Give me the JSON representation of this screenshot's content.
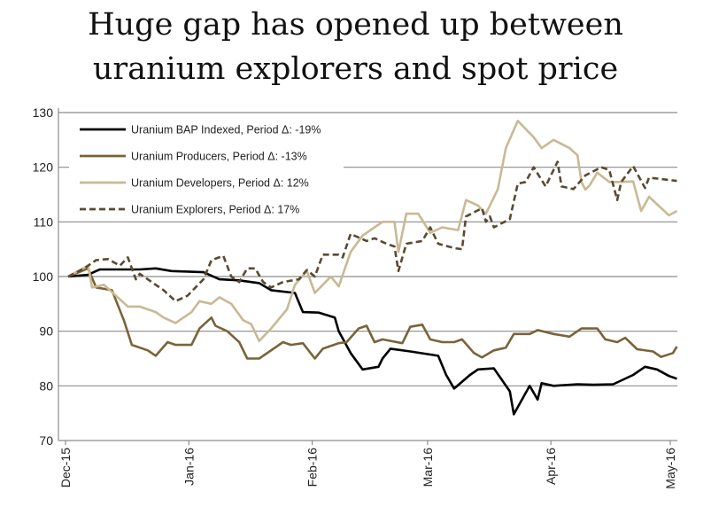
{
  "chart_data": {
    "type": "line",
    "title_lines": [
      "Huge gap has opened up between",
      "uranium explorers and spot price"
    ],
    "xlabel": "",
    "ylabel": "",
    "ylim": [
      70,
      130
    ],
    "yticks": [
      70,
      80,
      90,
      100,
      110,
      120,
      130
    ],
    "xlim": [
      "2015-12-01",
      "2016-05-01"
    ],
    "xticks": [
      {
        "date": "2015-12-01",
        "label": "Dec-15"
      },
      {
        "date": "2016-01-01",
        "label": "Jan-16"
      },
      {
        "date": "2016-02-01",
        "label": "Feb-16"
      },
      {
        "date": "2016-03-01",
        "label": "Mar-16"
      },
      {
        "date": "2016-04-01",
        "label": "Apr-16"
      },
      {
        "date": "2016-05-01",
        "label": "May-16"
      }
    ],
    "grid": "horizontal",
    "legend_position": "top-left",
    "series": [
      {
        "name": "Uranium BAP Indexed,   Period Δ: -19%",
        "color": "#000000",
        "dash": "solid",
        "points": [
          [
            "2015-12-01",
            100
          ],
          [
            "2015-12-06",
            100.3
          ],
          [
            "2015-12-08",
            101
          ],
          [
            "2015-12-09",
            101.3
          ],
          [
            "2015-12-19",
            101.3
          ],
          [
            "2015-12-23",
            101.5
          ],
          [
            "2015-12-27",
            101
          ],
          [
            "2016-01-04",
            100.8
          ],
          [
            "2016-01-08",
            99.5
          ],
          [
            "2016-01-13",
            99.3
          ],
          [
            "2016-01-18",
            98.8
          ],
          [
            "2016-01-21",
            97.5
          ],
          [
            "2016-01-27",
            97
          ],
          [
            "2016-01-29",
            93.5
          ],
          [
            "2016-02-02",
            93.4
          ],
          [
            "2016-02-06",
            92.5
          ],
          [
            "2016-02-07",
            90
          ],
          [
            "2016-02-10",
            86
          ],
          [
            "2016-02-13",
            83
          ],
          [
            "2016-02-17",
            83.5
          ],
          [
            "2016-02-18",
            85
          ],
          [
            "2016-02-20",
            86.8
          ],
          [
            "2016-02-25",
            86.3
          ],
          [
            "2016-03-03",
            85.5
          ],
          [
            "2016-03-05",
            82
          ],
          [
            "2016-03-07",
            79.5
          ],
          [
            "2016-03-11",
            82
          ],
          [
            "2016-03-13",
            83
          ],
          [
            "2016-03-17",
            83.2
          ],
          [
            "2016-03-21",
            79
          ],
          [
            "2016-03-22",
            74.8
          ],
          [
            "2016-03-26",
            80
          ],
          [
            "2016-03-28",
            77.5
          ],
          [
            "2016-03-29",
            80.5
          ],
          [
            "2016-04-01",
            80
          ],
          [
            "2016-04-07",
            80.3
          ],
          [
            "2016-04-11",
            80.2
          ],
          [
            "2016-04-16",
            80.3
          ],
          [
            "2016-04-21",
            82
          ],
          [
            "2016-04-24",
            83.5
          ],
          [
            "2016-04-27",
            83
          ],
          [
            "2016-04-30",
            81.8
          ],
          [
            "2016-05-02",
            81.3
          ]
        ]
      },
      {
        "name": "Uranium Producers,   Period Δ: -13%",
        "color": "#7b6338",
        "dash": "solid",
        "points": [
          [
            "2015-12-01",
            100
          ],
          [
            "2015-12-06",
            101.5
          ],
          [
            "2015-12-08",
            98
          ],
          [
            "2015-12-12",
            97.5
          ],
          [
            "2015-12-15",
            92
          ],
          [
            "2015-12-17",
            87.5
          ],
          [
            "2015-12-21",
            86.5
          ],
          [
            "2015-12-23",
            85.5
          ],
          [
            "2015-12-26",
            88
          ],
          [
            "2015-12-28",
            87.5
          ],
          [
            "2016-01-01",
            87.5
          ],
          [
            "2016-01-03",
            90.5
          ],
          [
            "2016-01-06",
            92.5
          ],
          [
            "2016-01-07",
            91
          ],
          [
            "2016-01-10",
            90
          ],
          [
            "2016-01-13",
            88
          ],
          [
            "2016-01-15",
            85
          ],
          [
            "2016-01-18",
            85
          ],
          [
            "2016-01-22",
            87
          ],
          [
            "2016-01-24",
            88
          ],
          [
            "2016-01-26",
            87.5
          ],
          [
            "2016-01-29",
            87.8
          ],
          [
            "2016-02-01",
            85
          ],
          [
            "2016-02-03",
            86.8
          ],
          [
            "2016-02-07",
            87.8
          ],
          [
            "2016-02-09",
            88
          ],
          [
            "2016-02-12",
            90.5
          ],
          [
            "2016-02-14",
            91
          ],
          [
            "2016-02-16",
            88
          ],
          [
            "2016-02-18",
            88.5
          ],
          [
            "2016-02-23",
            87.8
          ],
          [
            "2016-02-25",
            90.8
          ],
          [
            "2016-02-28",
            91.2
          ],
          [
            "2016-03-01",
            88.5
          ],
          [
            "2016-03-04",
            88
          ],
          [
            "2016-03-07",
            88
          ],
          [
            "2016-03-09",
            88.5
          ],
          [
            "2016-03-12",
            86
          ],
          [
            "2016-03-14",
            85.2
          ],
          [
            "2016-03-17",
            86.5
          ],
          [
            "2016-03-20",
            87
          ],
          [
            "2016-03-22",
            89.5
          ],
          [
            "2016-03-26",
            89.5
          ],
          [
            "2016-03-28",
            90.2
          ],
          [
            "2016-04-01",
            89.5
          ],
          [
            "2016-04-05",
            89
          ],
          [
            "2016-04-08",
            90.5
          ],
          [
            "2016-04-12",
            90.5
          ],
          [
            "2016-04-14",
            88.5
          ],
          [
            "2016-04-17",
            88
          ],
          [
            "2016-04-19",
            88.8
          ],
          [
            "2016-04-22",
            86.7
          ],
          [
            "2016-04-26",
            86.3
          ],
          [
            "2016-04-28",
            85.3
          ],
          [
            "2016-05-01",
            86
          ],
          [
            "2016-05-02",
            87.2
          ]
        ]
      },
      {
        "name": "Uranium Developers,   Period Δ: 12%",
        "color": "#c9b994",
        "dash": "solid",
        "points": [
          [
            "2015-12-01",
            100
          ],
          [
            "2015-12-06",
            102
          ],
          [
            "2015-12-07",
            98
          ],
          [
            "2015-12-10",
            98.5
          ],
          [
            "2015-12-13",
            96.5
          ],
          [
            "2015-12-16",
            94.5
          ],
          [
            "2015-12-19",
            94.5
          ],
          [
            "2015-12-23",
            93.5
          ],
          [
            "2015-12-25",
            92.5
          ],
          [
            "2015-12-28",
            91.5
          ],
          [
            "2016-01-01",
            93.5
          ],
          [
            "2016-01-03",
            95.5
          ],
          [
            "2016-01-06",
            95
          ],
          [
            "2016-01-08",
            96.2
          ],
          [
            "2016-01-11",
            95
          ],
          [
            "2016-01-14",
            92
          ],
          [
            "2016-01-16",
            91.3
          ],
          [
            "2016-01-18",
            88.2
          ],
          [
            "2016-01-21",
            90.5
          ],
          [
            "2016-01-25",
            94
          ],
          [
            "2016-01-27",
            98.5
          ],
          [
            "2016-01-30",
            101
          ],
          [
            "2016-02-01",
            97
          ],
          [
            "2016-02-03",
            98.5
          ],
          [
            "2016-02-05",
            100
          ],
          [
            "2016-02-07",
            98.2
          ],
          [
            "2016-02-10",
            104.5
          ],
          [
            "2016-02-13",
            107.5
          ],
          [
            "2016-02-16",
            109
          ],
          [
            "2016-02-18",
            110
          ],
          [
            "2016-02-21",
            110
          ],
          [
            "2016-02-22",
            104.5
          ],
          [
            "2016-02-24",
            111.5
          ],
          [
            "2016-02-27",
            111.5
          ],
          [
            "2016-03-01",
            108
          ],
          [
            "2016-03-04",
            109
          ],
          [
            "2016-03-08",
            108.5
          ],
          [
            "2016-03-10",
            114
          ],
          [
            "2016-03-13",
            113
          ],
          [
            "2016-03-15",
            111.5
          ],
          [
            "2016-03-18",
            116
          ],
          [
            "2016-03-20",
            123.5
          ],
          [
            "2016-03-23",
            128.5
          ],
          [
            "2016-03-27",
            125.5
          ],
          [
            "2016-03-29",
            123.5
          ],
          [
            "2016-04-01",
            125
          ],
          [
            "2016-04-05",
            123.5
          ],
          [
            "2016-04-07",
            122.2
          ],
          [
            "2016-04-08",
            117.3
          ],
          [
            "2016-04-09",
            115.9
          ],
          [
            "2016-04-10",
            116.6
          ],
          [
            "2016-04-12",
            119
          ],
          [
            "2016-04-15",
            117.3
          ],
          [
            "2016-04-18",
            117.3
          ],
          [
            "2016-04-21",
            117.4
          ],
          [
            "2016-04-23",
            112
          ],
          [
            "2016-04-25",
            114.6
          ],
          [
            "2016-04-30",
            111.2
          ],
          [
            "2016-05-02",
            112
          ]
        ]
      },
      {
        "name": "Uranium Explorers,   Period Δ: 17%",
        "color": "#5a4a30",
        "dash": "dashed",
        "points": [
          [
            "2015-12-01",
            100
          ],
          [
            "2015-12-05",
            101.5
          ],
          [
            "2015-12-08",
            103
          ],
          [
            "2015-12-11",
            103.2
          ],
          [
            "2015-12-14",
            102
          ],
          [
            "2015-12-16",
            103.5
          ],
          [
            "2015-12-18",
            99.5
          ],
          [
            "2015-12-19",
            100.5
          ],
          [
            "2015-12-22",
            99
          ],
          [
            "2015-12-25",
            97.5
          ],
          [
            "2015-12-28",
            95.5
          ],
          [
            "2015-12-31",
            96.5
          ],
          [
            "2016-01-02",
            98
          ],
          [
            "2016-01-04",
            99.5
          ],
          [
            "2016-01-06",
            103
          ],
          [
            "2016-01-09",
            103.8
          ],
          [
            "2016-01-11",
            100
          ],
          [
            "2016-01-13",
            99
          ],
          [
            "2016-01-15",
            101.5
          ],
          [
            "2016-01-17",
            101.5
          ],
          [
            "2016-01-19",
            99
          ],
          [
            "2016-01-21",
            98
          ],
          [
            "2016-01-24",
            99
          ],
          [
            "2016-01-28",
            99.5
          ],
          [
            "2016-01-30",
            101.2
          ],
          [
            "2016-02-01",
            100
          ],
          [
            "2016-02-03",
            104
          ],
          [
            "2016-02-07",
            104
          ],
          [
            "2016-02-08",
            103.5
          ],
          [
            "2016-02-10",
            107.8
          ],
          [
            "2016-02-14",
            106.5
          ],
          [
            "2016-02-16",
            107
          ],
          [
            "2016-02-19",
            106
          ],
          [
            "2016-02-21",
            105.5
          ],
          [
            "2016-02-22",
            101
          ],
          [
            "2016-02-24",
            106
          ],
          [
            "2016-02-28",
            106.5
          ],
          [
            "2016-03-01",
            109
          ],
          [
            "2016-03-03",
            106
          ],
          [
            "2016-03-07",
            105.2
          ],
          [
            "2016-03-09",
            105
          ],
          [
            "2016-03-10",
            111
          ],
          [
            "2016-03-14",
            112.5
          ],
          [
            "2016-03-15",
            110
          ],
          [
            "2016-03-16",
            111
          ],
          [
            "2016-03-17",
            109
          ],
          [
            "2016-03-21",
            110.5
          ],
          [
            "2016-03-23",
            117
          ],
          [
            "2016-03-25",
            117.3
          ],
          [
            "2016-03-27",
            120
          ],
          [
            "2016-03-30",
            116.5
          ],
          [
            "2016-04-02",
            121
          ],
          [
            "2016-04-03",
            116.5
          ],
          [
            "2016-04-06",
            116
          ],
          [
            "2016-04-09",
            118.5
          ],
          [
            "2016-04-13",
            120
          ],
          [
            "2016-04-15",
            119.5
          ],
          [
            "2016-04-17",
            114
          ],
          [
            "2016-04-18",
            117.3
          ],
          [
            "2016-04-21",
            120.2
          ],
          [
            "2016-04-24",
            116.2
          ],
          [
            "2016-04-25",
            118.1
          ],
          [
            "2016-05-02",
            117.5
          ]
        ]
      }
    ]
  }
}
